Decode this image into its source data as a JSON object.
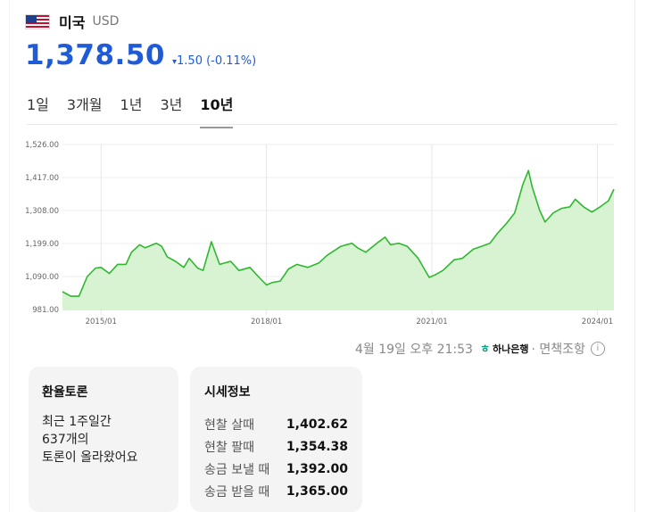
{
  "header": {
    "country": "미국",
    "currency": "USD",
    "flag": "us-flag"
  },
  "rate": {
    "value": "1,378.50",
    "change_arrow": "▾",
    "change": "1.50 (-0.11%)",
    "color": "#1f5bd6"
  },
  "tabs": [
    {
      "label": "1일"
    },
    {
      "label": "3개월"
    },
    {
      "label": "1년"
    },
    {
      "label": "3년"
    },
    {
      "label": "10년",
      "active": true
    }
  ],
  "chart_data": {
    "type": "area",
    "title": "",
    "xlabel": "",
    "ylabel": "",
    "ylim": [
      981,
      1526
    ],
    "yticks": [
      "1,526.00",
      "1,417.00",
      "1,308.00",
      "1,199.00",
      "1,090.00",
      "981.00"
    ],
    "xticks": [
      "2015/01",
      "2018/01",
      "2021/01",
      "2024/01"
    ],
    "xlim": [
      2014.3,
      2024.3
    ],
    "grid": true,
    "line_color": "#2fb82f",
    "fill_color": "#d7f3d2",
    "series": [
      {
        "x": [
          2014.3,
          2014.45,
          2014.6,
          2014.75,
          2014.9,
          2015.0,
          2015.15,
          2015.3,
          2015.45,
          2015.55,
          2015.7,
          2015.8,
          2016.0,
          2016.1,
          2016.2,
          2016.35,
          2016.5,
          2016.6,
          2016.75,
          2016.85,
          2017.0,
          2017.15,
          2017.35,
          2017.5,
          2017.7,
          2017.85,
          2018.0,
          2018.1,
          2018.25,
          2018.4,
          2018.55,
          2018.75,
          2018.95,
          2019.1,
          2019.35,
          2019.55,
          2019.65,
          2019.8,
          2020.0,
          2020.15,
          2020.25,
          2020.4,
          2020.55,
          2020.75,
          2020.95,
          2021.05,
          2021.2,
          2021.4,
          2021.55,
          2021.75,
          2021.9,
          2022.05,
          2022.2,
          2022.35,
          2022.5,
          2022.65,
          2022.75,
          2022.82,
          2022.95,
          2023.05,
          2023.2,
          2023.35,
          2023.5,
          2023.6,
          2023.75,
          2023.9,
          2024.05,
          2024.2,
          2024.3
        ],
        "y": [
          1040,
          1025,
          1025,
          1090,
          1118,
          1120,
          1100,
          1130,
          1130,
          1170,
          1195,
          1185,
          1200,
          1190,
          1155,
          1140,
          1120,
          1150,
          1118,
          1110,
          1205,
          1130,
          1140,
          1110,
          1120,
          1090,
          1062,
          1070,
          1075,
          1115,
          1130,
          1120,
          1135,
          1160,
          1190,
          1200,
          1185,
          1170,
          1200,
          1220,
          1195,
          1200,
          1190,
          1150,
          1087,
          1095,
          1110,
          1145,
          1150,
          1180,
          1190,
          1200,
          1235,
          1265,
          1300,
          1395,
          1440,
          1385,
          1310,
          1270,
          1300,
          1315,
          1320,
          1345,
          1320,
          1303,
          1320,
          1340,
          1378.5
        ]
      }
    ]
  },
  "footer": {
    "timestamp": "4월 19일 오후 21:53",
    "bank": "하나은행",
    "disclaimer": "· 면책조항",
    "info_icon": "info-icon"
  },
  "discussion": {
    "title": "환율토론",
    "line1": "최근 1주일간",
    "line2": "637개의",
    "line3": "토론이 올라왔어요"
  },
  "market_info": {
    "title": "시세정보",
    "rows": [
      {
        "label": "현찰 살때",
        "value": "1,402.62"
      },
      {
        "label": "현찰 팔때",
        "value": "1,354.38"
      },
      {
        "label": "송금 보낼 때",
        "value": "1,392.00"
      },
      {
        "label": "송금 받을 때",
        "value": "1,365.00"
      }
    ]
  }
}
